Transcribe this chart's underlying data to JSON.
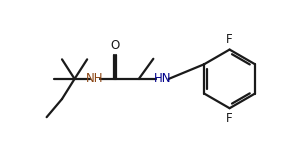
{
  "bg_color": "#ffffff",
  "line_color": "#1a1a1a",
  "nh_color": "#8B4513",
  "nh2_color": "#00008B",
  "lw": 1.6,
  "figsize": [
    2.86,
    1.55
  ],
  "dpi": 100,
  "xlim": [
    0,
    10
  ],
  "ylim": [
    0,
    5.5
  ]
}
